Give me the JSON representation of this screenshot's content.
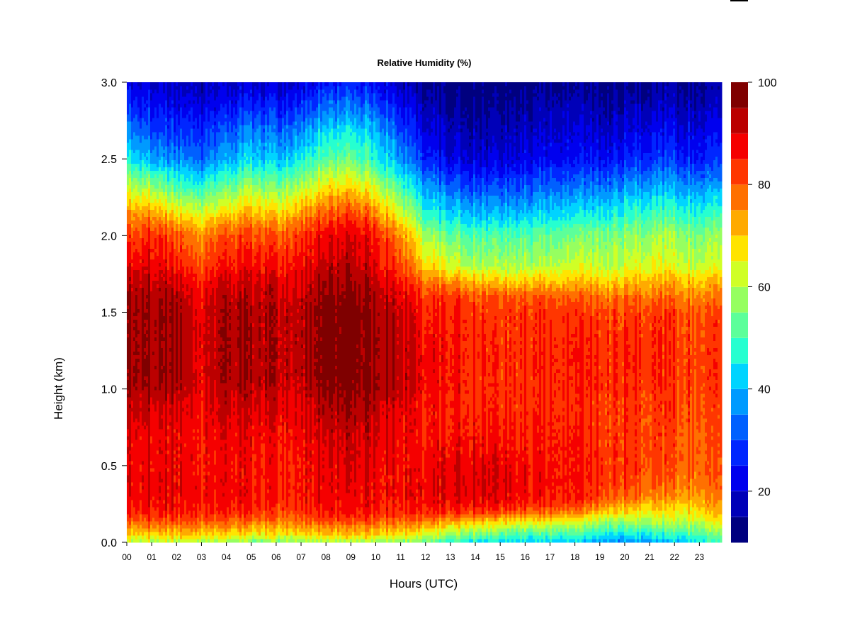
{
  "chart_data": {
    "type": "heatmap",
    "title": "Relative Humidity (%)",
    "xlabel": "Hours (UTC)",
    "ylabel": "Height (km)",
    "x_tick_labels": [
      "00",
      "01",
      "02",
      "03",
      "04",
      "05",
      "06",
      "07",
      "08",
      "09",
      "10",
      "11",
      "12",
      "13",
      "14",
      "15",
      "16",
      "17",
      "18",
      "19",
      "20",
      "21",
      "22",
      "23"
    ],
    "x_range_hours": [
      0,
      23.9
    ],
    "y_tick_values": [
      0.0,
      0.5,
      1.0,
      1.5,
      2.0,
      2.5,
      3.0
    ],
    "y_tick_labels": [
      "0.0",
      "0.5",
      "1.0",
      "1.5",
      "2.0",
      "2.5",
      "3.0"
    ],
    "ylim": [
      0.0,
      3.0
    ],
    "colorbar": {
      "range": [
        10,
        100
      ],
      "step": 5,
      "tick_values": [
        20,
        40,
        60,
        80,
        100
      ],
      "tick_labels": [
        "20",
        "40",
        "60",
        "80",
        "100"
      ],
      "colors": [
        "#00007f",
        "#0000b8",
        "#0000ee",
        "#0026ff",
        "#0060ff",
        "#009aff",
        "#00d4ff",
        "#26ffd0",
        "#5cff9a",
        "#96ff60",
        "#d0ff26",
        "#ffe400",
        "#ffaa00",
        "#ff7000",
        "#ff3600",
        "#f50000",
        "#bb0000",
        "#7f0000"
      ]
    },
    "heights_km": [
      0.0,
      0.05,
      0.1,
      0.15,
      0.2,
      0.25,
      0.3,
      0.4,
      0.5,
      0.7,
      0.9,
      1.0,
      1.1,
      1.3,
      1.5,
      1.6,
      1.7,
      1.8,
      2.0,
      2.1,
      2.2,
      2.3,
      2.4,
      2.5,
      2.7,
      2.85,
      3.0
    ],
    "profiles": [
      {
        "hour": 0.0,
        "rh": [
          60,
          68,
          74,
          80,
          84,
          86,
          87,
          88,
          88,
          89,
          92,
          94,
          95,
          95,
          95,
          94,
          92,
          88,
          82,
          76,
          70,
          62,
          55,
          45,
          35,
          27,
          22
        ]
      },
      {
        "hour": 1.0,
        "rh": [
          60,
          70,
          76,
          82,
          86,
          88,
          89,
          89,
          88,
          89,
          92,
          95,
          96,
          96,
          96,
          95,
          93,
          90,
          85,
          78,
          70,
          60,
          50,
          40,
          30,
          25,
          20
        ]
      },
      {
        "hour": 2.0,
        "rh": [
          58,
          70,
          76,
          82,
          86,
          87,
          88,
          88,
          88,
          88,
          91,
          94,
          95,
          95,
          95,
          94,
          90,
          86,
          80,
          72,
          62,
          52,
          44,
          36,
          28,
          22,
          18
        ]
      },
      {
        "hour": 2.8,
        "rh": [
          58,
          68,
          74,
          80,
          84,
          85,
          86,
          86,
          85,
          85,
          86,
          88,
          88,
          88,
          88,
          86,
          84,
          80,
          74,
          66,
          58,
          48,
          40,
          32,
          25,
          20,
          16
        ]
      },
      {
        "hour": 4.0,
        "rh": [
          56,
          68,
          74,
          80,
          84,
          86,
          87,
          87,
          87,
          88,
          91,
          93,
          94,
          94,
          94,
          93,
          90,
          86,
          80,
          72,
          62,
          54,
          46,
          38,
          30,
          23,
          18
        ]
      },
      {
        "hour": 5.0,
        "rh": [
          55,
          66,
          73,
          80,
          84,
          86,
          87,
          87,
          87,
          88,
          91,
          93,
          94,
          94,
          94,
          93,
          91,
          88,
          82,
          76,
          68,
          60,
          52,
          44,
          35,
          27,
          20
        ]
      },
      {
        "hour": 6.0,
        "rh": [
          55,
          66,
          72,
          78,
          82,
          84,
          85,
          86,
          86,
          87,
          90,
          92,
          93,
          93,
          93,
          92,
          90,
          86,
          80,
          72,
          64,
          56,
          48,
          40,
          32,
          25,
          19
        ]
      },
      {
        "hour": 7.0,
        "rh": [
          56,
          68,
          74,
          80,
          84,
          86,
          87,
          87,
          87,
          88,
          90,
          92,
          93,
          93,
          93,
          92,
          90,
          88,
          84,
          78,
          70,
          62,
          54,
          46,
          36,
          28,
          21
        ]
      },
      {
        "hour": 8.0,
        "rh": [
          58,
          70,
          76,
          82,
          86,
          87,
          88,
          88,
          89,
          91,
          94,
          97,
          98,
          98,
          98,
          97,
          95,
          92,
          88,
          82,
          76,
          68,
          60,
          52,
          42,
          33,
          25
        ]
      },
      {
        "hour": 9.0,
        "rh": [
          58,
          70,
          76,
          82,
          86,
          87,
          88,
          89,
          90,
          92,
          95,
          97,
          98,
          98,
          98,
          97,
          95,
          93,
          90,
          85,
          78,
          70,
          62,
          54,
          44,
          34,
          26
        ]
      },
      {
        "hour": 10.0,
        "rh": [
          58,
          70,
          76,
          82,
          86,
          88,
          88,
          88,
          89,
          91,
          94,
          96,
          96,
          96,
          96,
          95,
          93,
          90,
          86,
          80,
          72,
          64,
          56,
          48,
          40,
          32,
          24
        ]
      },
      {
        "hour": 11.0,
        "rh": [
          56,
          68,
          74,
          80,
          84,
          86,
          87,
          87,
          87,
          88,
          90,
          92,
          93,
          93,
          92,
          90,
          87,
          82,
          76,
          68,
          60,
          52,
          45,
          38,
          30,
          24,
          18
        ]
      },
      {
        "hour": 12.0,
        "rh": [
          52,
          62,
          70,
          78,
          84,
          86,
          87,
          87,
          86,
          85,
          85,
          86,
          86,
          86,
          84,
          82,
          76,
          68,
          58,
          50,
          44,
          38,
          32,
          26,
          20,
          16,
          13
        ]
      },
      {
        "hour": 13.0,
        "rh": [
          48,
          58,
          66,
          76,
          84,
          88,
          89,
          90,
          89,
          87,
          86,
          87,
          87,
          87,
          86,
          84,
          76,
          64,
          54,
          46,
          40,
          34,
          28,
          22,
          18,
          15,
          12
        ]
      },
      {
        "hour": 14.0,
        "rh": [
          44,
          56,
          64,
          74,
          84,
          88,
          90,
          91,
          90,
          87,
          85,
          85,
          85,
          85,
          84,
          82,
          72,
          60,
          52,
          44,
          38,
          32,
          26,
          21,
          17,
          14,
          12
        ]
      },
      {
        "hour": 15.0,
        "rh": [
          42,
          52,
          62,
          72,
          82,
          87,
          89,
          90,
          89,
          86,
          84,
          84,
          84,
          84,
          83,
          81,
          70,
          60,
          52,
          44,
          38,
          32,
          26,
          21,
          17,
          14,
          12
        ]
      },
      {
        "hour": 16.0,
        "rh": [
          42,
          50,
          60,
          70,
          80,
          85,
          87,
          88,
          87,
          85,
          84,
          84,
          84,
          84,
          83,
          80,
          70,
          60,
          52,
          45,
          38,
          32,
          27,
          22,
          18,
          15,
          12
        ]
      },
      {
        "hour": 17.0,
        "rh": [
          42,
          50,
          58,
          68,
          78,
          83,
          85,
          86,
          86,
          85,
          84,
          84,
          84,
          84,
          83,
          80,
          70,
          60,
          52,
          45,
          39,
          33,
          28,
          23,
          19,
          16,
          13
        ]
      },
      {
        "hour": 18.0,
        "rh": [
          40,
          48,
          56,
          66,
          76,
          82,
          84,
          85,
          85,
          84,
          83,
          84,
          84,
          84,
          82,
          78,
          70,
          62,
          54,
          46,
          40,
          34,
          28,
          23,
          19,
          16,
          13
        ]
      },
      {
        "hour": 19.0,
        "rh": [
          38,
          46,
          54,
          62,
          72,
          78,
          82,
          84,
          84,
          83,
          83,
          84,
          84,
          84,
          82,
          78,
          70,
          62,
          55,
          48,
          42,
          36,
          30,
          24,
          19,
          16,
          13
        ]
      },
      {
        "hour": 20.0,
        "rh": [
          36,
          44,
          52,
          60,
          68,
          74,
          79,
          82,
          83,
          83,
          83,
          84,
          84,
          84,
          82,
          78,
          70,
          62,
          56,
          50,
          44,
          38,
          32,
          26,
          20,
          16,
          13
        ]
      },
      {
        "hour": 21.0,
        "rh": [
          38,
          46,
          54,
          60,
          66,
          72,
          77,
          80,
          82,
          82,
          82,
          83,
          84,
          84,
          82,
          78,
          72,
          64,
          58,
          52,
          46,
          40,
          34,
          28,
          22,
          17,
          14
        ]
      },
      {
        "hour": 22.0,
        "rh": [
          40,
          48,
          56,
          62,
          66,
          70,
          74,
          78,
          80,
          81,
          82,
          83,
          83,
          83,
          82,
          78,
          72,
          64,
          58,
          52,
          46,
          40,
          34,
          28,
          22,
          18,
          15
        ]
      },
      {
        "hour": 23.0,
        "rh": [
          44,
          52,
          58,
          64,
          68,
          72,
          75,
          78,
          79,
          80,
          81,
          82,
          82,
          82,
          80,
          76,
          70,
          62,
          56,
          50,
          44,
          38,
          32,
          26,
          21,
          17,
          14
        ]
      },
      {
        "hour": 23.9,
        "rh": [
          46,
          54,
          60,
          66,
          70,
          73,
          76,
          78,
          79,
          80,
          81,
          82,
          82,
          82,
          80,
          76,
          70,
          62,
          56,
          50,
          44,
          38,
          32,
          26,
          21,
          17,
          14
        ]
      }
    ]
  }
}
